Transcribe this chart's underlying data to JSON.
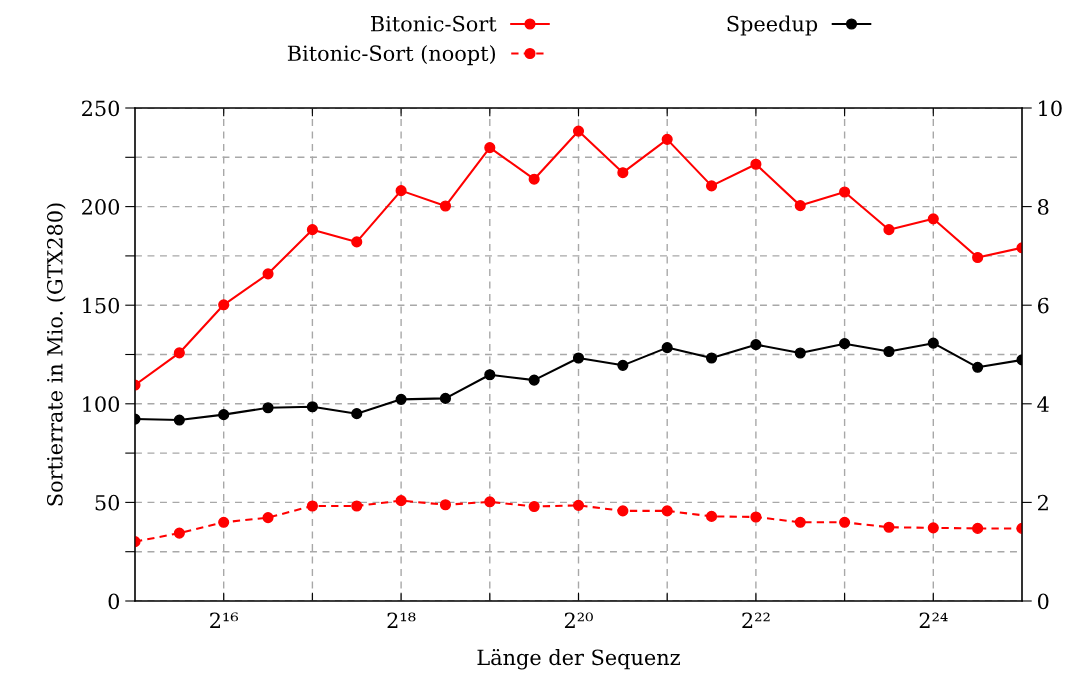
{
  "chart_data": {
    "type": "line",
    "xlabel": "Länge der Sequenz",
    "ylabel": "Sortierrate in Mio. (GTX280)",
    "x": [
      32768,
      46341,
      65536,
      92682,
      131072,
      185364,
      262144,
      370728,
      524288,
      741455,
      1048576,
      1482910,
      2097152,
      2965821,
      4194304,
      5931642,
      8388608,
      11863283,
      16777216,
      23726566,
      33554432
    ],
    "series": [
      {
        "name": "Bitonic-Sort",
        "color": "#ff0000",
        "line_style": "solid",
        "values": [
          109.5,
          125.8,
          150.2,
          165.9,
          188.3,
          182.1,
          208.1,
          200.3,
          229.9,
          213.9,
          238.3,
          217.2,
          234.1,
          210.5,
          221.5,
          200.5,
          207.4,
          188.3,
          193.8,
          174.2,
          179.1
        ]
      },
      {
        "name": "Bitonic-Sort (noopt)",
        "color": "#ff0000",
        "line_style": "dashed",
        "values": [
          30.1,
          34.4,
          39.9,
          42.3,
          48.2,
          48.2,
          50.9,
          48.8,
          50.3,
          47.9,
          48.5,
          45.7,
          45.7,
          42.9,
          42.6,
          39.9,
          39.9,
          37.4,
          37.1,
          36.8,
          36.8
        ]
      },
      {
        "name": "Speedup",
        "color": "#000000",
        "line_style": "solid",
        "axis": "y2",
        "values": [
          3.69,
          3.67,
          3.78,
          3.92,
          3.94,
          3.8,
          4.09,
          4.11,
          4.59,
          4.48,
          4.93,
          4.78,
          5.14,
          4.93,
          5.2,
          5.03,
          5.22,
          5.06,
          5.23,
          4.74,
          4.89
        ]
      }
    ],
    "log": "x",
    "xlim": [
      32768,
      33554432
    ],
    "xticks": [
      {
        "value": 65536,
        "label": "2¹⁶"
      },
      {
        "value": 131072,
        "label": null
      },
      {
        "value": 262144,
        "label": "2¹⁸"
      },
      {
        "value": 524288,
        "label": null
      },
      {
        "value": 1048576,
        "label": "2²⁰"
      },
      {
        "value": 2097152,
        "label": null
      },
      {
        "value": 4194304,
        "label": "2²²"
      },
      {
        "value": 8388608,
        "label": null
      },
      {
        "value": 16777216,
        "label": "2²⁴"
      }
    ],
    "ylim": [
      0,
      250
    ],
    "yticks": [
      0,
      {
        "value": 25,
        "label": null
      },
      50,
      {
        "value": 75,
        "label": null
      },
      100,
      {
        "value": 125,
        "label": null
      },
      150,
      {
        "value": 175,
        "label": null
      },
      200,
      {
        "value": 225,
        "label": null
      },
      250
    ],
    "y2lim": [
      0,
      10
    ],
    "y2ticks": [
      0,
      2,
      4,
      6,
      8,
      10
    ],
    "grid": true,
    "legend": "top",
    "marker": "circle"
  }
}
